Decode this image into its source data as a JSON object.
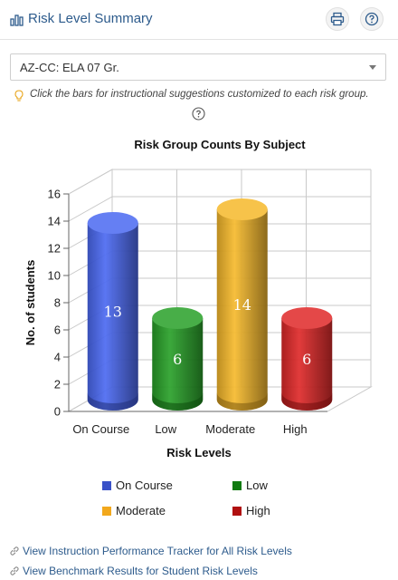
{
  "header": {
    "title": "Risk Level Summary",
    "icons": [
      "bar-chart-icon",
      "printer-icon",
      "question-icon"
    ]
  },
  "subject_select": {
    "value": "AZ-CC: ELA 07 Gr."
  },
  "hint": {
    "text": "Click the bars for instructional suggestions customized to each risk group."
  },
  "chart_data": {
    "type": "bar",
    "style": "3d-cylinder",
    "title": "Risk Group Counts By Subject",
    "xlabel": "Risk Levels",
    "ylabel": "No. of students",
    "categories": [
      "On Course",
      "Low",
      "Moderate",
      "High"
    ],
    "values": [
      13,
      6,
      14,
      6
    ],
    "colors": [
      "#3f5ff0",
      "#1a9a1a",
      "#f5b41d",
      "#dd1a1a"
    ],
    "ylim": [
      0,
      16
    ],
    "yticks": [
      0,
      2,
      4,
      6,
      8,
      10,
      12,
      14,
      16
    ],
    "grid": true,
    "legend": {
      "placement": "bottom",
      "items": [
        {
          "label": "On Course",
          "color": "#3a52c8"
        },
        {
          "label": "Low",
          "color": "#117a11"
        },
        {
          "label": "Moderate",
          "color": "#f2a81c"
        },
        {
          "label": "High",
          "color": "#b01010"
        }
      ]
    }
  },
  "links": [
    {
      "label": "View Instruction Performance Tracker for All Risk Levels"
    },
    {
      "label": "View Benchmark Results for Student Risk Levels"
    }
  ]
}
